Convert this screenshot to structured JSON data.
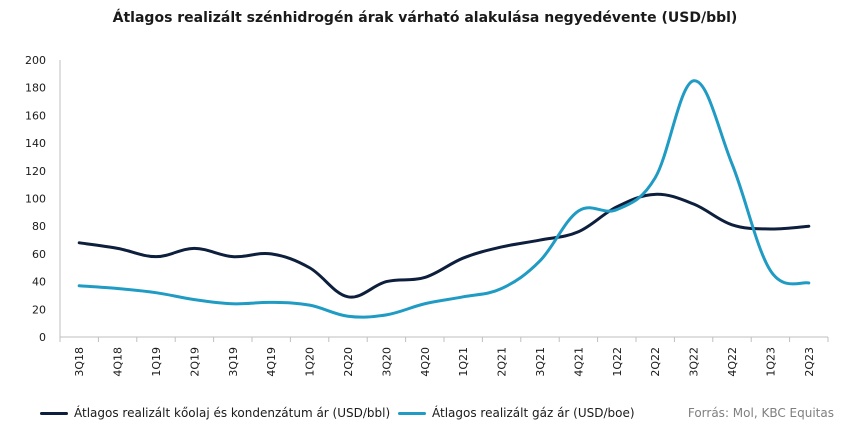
{
  "chart_data": {
    "type": "line",
    "title": "Átlagos realizált szénhidrogén árak várható alakulása negyedévente  (USD/bbl)",
    "categories": [
      "3Q18",
      "4Q18",
      "1Q19",
      "2Q19",
      "3Q19",
      "4Q19",
      "1Q20",
      "2Q20",
      "3Q20",
      "4Q20",
      "1Q21",
      "2Q21",
      "3Q21",
      "4Q21",
      "1Q22",
      "2Q22",
      "3Q22",
      "4Q22",
      "1Q23",
      "2Q23"
    ],
    "ylim": [
      0,
      200
    ],
    "yticks": [
      0,
      20,
      40,
      60,
      80,
      100,
      120,
      140,
      160,
      180,
      200
    ],
    "grid": false,
    "legend_position": "bottom-left",
    "series": [
      {
        "name": "Átlagos realizált kőolaj és kondenzátum ár (USD/bbl)",
        "color": "#0d1f3c",
        "values": [
          68,
          64,
          58,
          64,
          58,
          60,
          50,
          29,
          40,
          43,
          57,
          65,
          70,
          76,
          94,
          103,
          96,
          81,
          78,
          80
        ]
      },
      {
        "name": "Átlagos realizált gáz ár (USD/boe)",
        "color": "#1f9bc4",
        "values": [
          37,
          35,
          32,
          27,
          24,
          25,
          23,
          15,
          16,
          24,
          29,
          35,
          55,
          91,
          92,
          115,
          185,
          125,
          48,
          39
        ]
      }
    ]
  },
  "source": "Forrás: Mol, KBC Equitas"
}
